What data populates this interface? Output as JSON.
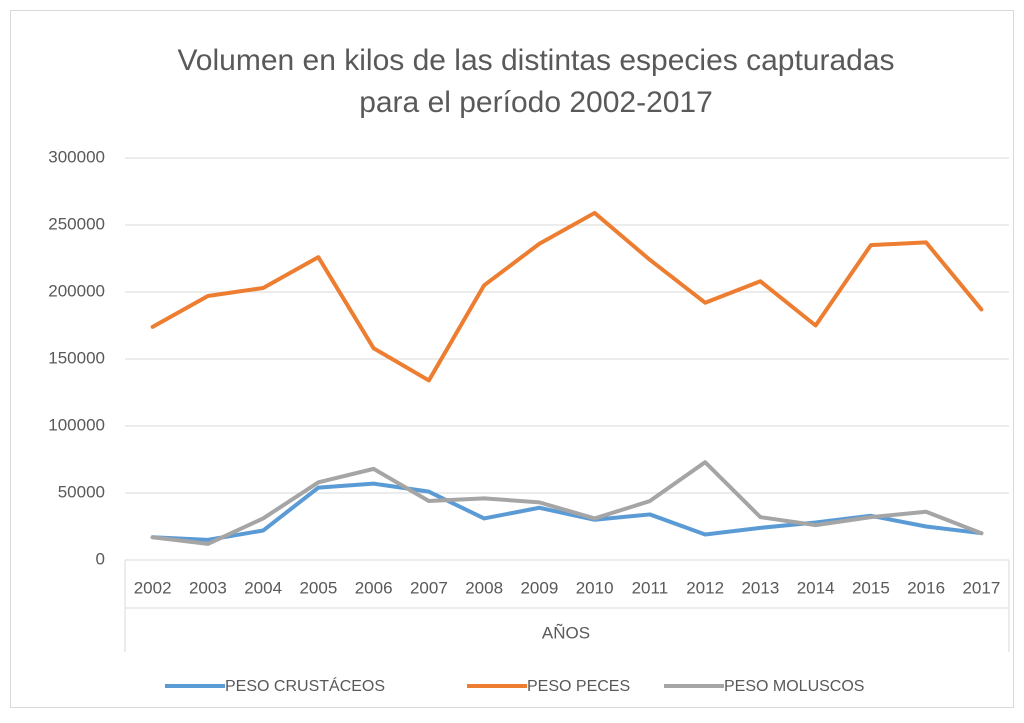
{
  "chart_data": {
    "type": "line",
    "title": [
      "Volumen en kilos de las distintas especies capturadas",
      "para el período 2002-2017"
    ],
    "x_label": "AÑOS",
    "categories": [
      "2002",
      "2003",
      "2004",
      "2005",
      "2006",
      "2007",
      "2008",
      "2009",
      "2010",
      "2011",
      "2012",
      "2013",
      "2014",
      "2015",
      "2016",
      "2017"
    ],
    "series": [
      {
        "name": "PESO CRUSTÁCEOS",
        "color": "#5b9bd5",
        "values": [
          17000,
          15000,
          22000,
          54000,
          57000,
          51000,
          31000,
          39000,
          30000,
          34000,
          19000,
          24000,
          28000,
          33000,
          25000,
          20000
        ]
      },
      {
        "name": "PESO PECES",
        "color": "#ed7d31",
        "values": [
          174000,
          197000,
          203000,
          226000,
          158000,
          134000,
          205000,
          236000,
          259000,
          224000,
          192000,
          208000,
          175000,
          235000,
          237000,
          187000
        ]
      },
      {
        "name": "PESO MOLUSCOS",
        "color": "#a5a5a5",
        "values": [
          17000,
          12000,
          31000,
          58000,
          68000,
          44000,
          46000,
          43000,
          31000,
          44000,
          73000,
          32000,
          26000,
          32000,
          36000,
          20000
        ]
      }
    ],
    "ylim": [
      0,
      300000
    ],
    "yticks": [
      0,
      50000,
      100000,
      150000,
      200000,
      250000,
      300000
    ],
    "grid": true,
    "legend": "bottom"
  }
}
